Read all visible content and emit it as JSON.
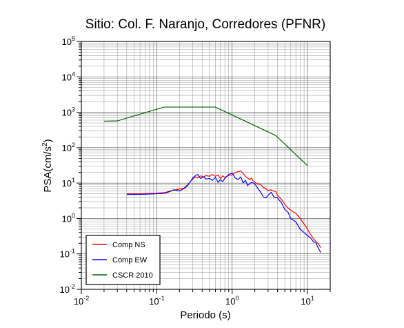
{
  "chart_data": {
    "type": "line",
    "title": "Sitio: Col. F. Naranjo, Corredores (PFNR)",
    "xlabel": "Periodo (s)",
    "ylabel": {
      "main": "PSA(cm/s",
      "sup": "2",
      "close": ")"
    },
    "x_scale": "log",
    "y_scale": "log",
    "xlim": [
      0.01,
      20
    ],
    "ylim": [
      0.01,
      100000
    ],
    "grid": true,
    "x_ticks": [
      {
        "value": 0.01,
        "base": "10",
        "exp": "-2"
      },
      {
        "value": 0.1,
        "base": "10",
        "exp": "-1"
      },
      {
        "value": 1,
        "base": "10",
        "exp": "0"
      },
      {
        "value": 10,
        "base": "10",
        "exp": "1"
      }
    ],
    "y_ticks": [
      {
        "value": 0.01,
        "base": "10",
        "exp": "-2"
      },
      {
        "value": 0.1,
        "base": "10",
        "exp": "-1"
      },
      {
        "value": 1,
        "base": "10",
        "exp": "0"
      },
      {
        "value": 10,
        "base": "10",
        "exp": "1"
      },
      {
        "value": 100,
        "base": "10",
        "exp": "2"
      },
      {
        "value": 1000,
        "base": "10",
        "exp": "3"
      },
      {
        "value": 10000,
        "base": "10",
        "exp": "4"
      },
      {
        "value": 100000,
        "base": "10",
        "exp": "5"
      }
    ],
    "legend": {
      "position": "bottom-left"
    },
    "series": [
      {
        "name": "Comp NS",
        "color": "#ff0000",
        "points": [
          [
            0.04,
            5.0
          ],
          [
            0.06,
            5.0
          ],
          [
            0.08,
            5.1
          ],
          [
            0.1,
            5.2
          ],
          [
            0.13,
            5.4
          ],
          [
            0.15,
            6.0
          ],
          [
            0.17,
            6.3
          ],
          [
            0.2,
            6.8
          ],
          [
            0.23,
            7.2
          ],
          [
            0.25,
            8.5
          ],
          [
            0.28,
            11.0
          ],
          [
            0.3,
            13.0
          ],
          [
            0.33,
            15.0
          ],
          [
            0.35,
            14.0
          ],
          [
            0.38,
            16.0
          ],
          [
            0.42,
            15.0
          ],
          [
            0.45,
            16.5
          ],
          [
            0.5,
            15.5
          ],
          [
            0.55,
            17.5
          ],
          [
            0.6,
            15.5
          ],
          [
            0.65,
            17.0
          ],
          [
            0.7,
            13.5
          ],
          [
            0.75,
            16.0
          ],
          [
            0.8,
            14.5
          ],
          [
            0.9,
            16.5
          ],
          [
            1.0,
            17.0
          ],
          [
            1.1,
            20.0
          ],
          [
            1.2,
            21.0
          ],
          [
            1.3,
            22.0
          ],
          [
            1.4,
            19.0
          ],
          [
            1.5,
            15.5
          ],
          [
            1.6,
            14.0
          ],
          [
            1.7,
            12.5
          ],
          [
            1.8,
            14.0
          ],
          [
            1.9,
            11.5
          ],
          [
            2.0,
            10.5
          ],
          [
            2.2,
            9.5
          ],
          [
            2.4,
            9.0
          ],
          [
            2.6,
            7.5
          ],
          [
            2.8,
            7.0
          ],
          [
            3.0,
            6.0
          ],
          [
            3.2,
            6.5
          ],
          [
            3.5,
            6.0
          ],
          [
            3.8,
            5.8
          ],
          [
            4.0,
            4.5
          ],
          [
            4.5,
            3.5
          ],
          [
            5.0,
            2.5
          ],
          [
            5.5,
            2.0
          ],
          [
            6.0,
            1.7
          ],
          [
            7.0,
            1.4
          ],
          [
            8.0,
            1.0
          ],
          [
            9.0,
            0.7
          ],
          [
            10.0,
            0.5
          ],
          [
            11.0,
            0.35
          ],
          [
            12.0,
            0.27
          ],
          [
            13.0,
            0.22
          ],
          [
            14.0,
            0.19
          ],
          [
            15.0,
            0.15
          ]
        ]
      },
      {
        "name": "Comp EW",
        "color": "#0000ff",
        "points": [
          [
            0.04,
            4.8
          ],
          [
            0.06,
            4.8
          ],
          [
            0.08,
            4.9
          ],
          [
            0.1,
            5.0
          ],
          [
            0.13,
            5.2
          ],
          [
            0.15,
            5.8
          ],
          [
            0.17,
            6.5
          ],
          [
            0.2,
            6.0
          ],
          [
            0.23,
            7.0
          ],
          [
            0.25,
            8.0
          ],
          [
            0.28,
            11.0
          ],
          [
            0.3,
            14.0
          ],
          [
            0.33,
            16.5
          ],
          [
            0.35,
            17.5
          ],
          [
            0.38,
            13.5
          ],
          [
            0.42,
            15.0
          ],
          [
            0.45,
            13.0
          ],
          [
            0.5,
            13.5
          ],
          [
            0.55,
            12.0
          ],
          [
            0.6,
            14.5
          ],
          [
            0.65,
            10.5
          ],
          [
            0.7,
            12.5
          ],
          [
            0.75,
            11.0
          ],
          [
            0.8,
            13.5
          ],
          [
            0.9,
            17.5
          ],
          [
            1.0,
            19.0
          ],
          [
            1.1,
            14.0
          ],
          [
            1.2,
            12.5
          ],
          [
            1.3,
            15.0
          ],
          [
            1.4,
            10.0
          ],
          [
            1.5,
            12.0
          ],
          [
            1.6,
            8.5
          ],
          [
            1.7,
            9.5
          ],
          [
            1.8,
            10.5
          ],
          [
            2.0,
            9.5
          ],
          [
            2.2,
            7.0
          ],
          [
            2.4,
            5.5
          ],
          [
            2.6,
            4.0
          ],
          [
            2.8,
            3.8
          ],
          [
            3.0,
            4.5
          ],
          [
            3.3,
            5.5
          ],
          [
            3.6,
            4.0
          ],
          [
            4.0,
            3.8
          ],
          [
            4.5,
            2.8
          ],
          [
            5.0,
            1.8
          ],
          [
            5.5,
            1.5
          ],
          [
            6.0,
            1.0
          ],
          [
            7.0,
            0.8
          ],
          [
            8.0,
            0.5
          ],
          [
            9.0,
            0.4
          ],
          [
            10.0,
            0.33
          ],
          [
            11.0,
            0.28
          ],
          [
            12.0,
            0.22
          ],
          [
            13.0,
            0.2
          ],
          [
            14.0,
            0.14
          ],
          [
            15.0,
            0.11
          ]
        ]
      },
      {
        "name": "CSCR 2010",
        "color": "#006400",
        "points": [
          [
            0.02,
            560
          ],
          [
            0.03,
            570
          ],
          [
            0.125,
            1400
          ],
          [
            0.6,
            1400
          ],
          [
            3.8,
            220
          ],
          [
            10.0,
            31
          ]
        ]
      }
    ]
  }
}
